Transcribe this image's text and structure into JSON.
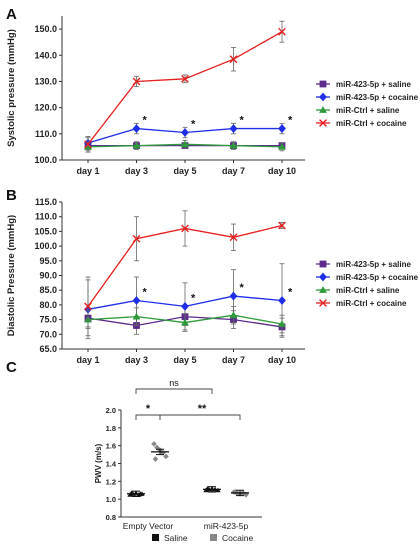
{
  "panels": [
    "A",
    "B",
    "C"
  ],
  "chart_data": [
    {
      "type": "line",
      "ylabel": "Systolic pressure (mmHg)",
      "categories": [
        "day 1",
        "day 3",
        "day 5",
        "day 7",
        "day 10"
      ],
      "ylim": [
        100,
        155
      ],
      "yticks": [
        "100.0",
        "110.0",
        "120.0",
        "130.0",
        "140.0",
        "150.0"
      ],
      "legend_position": "right",
      "series": [
        {
          "name": "miR-423-5p + saline",
          "color": "#5b2a8c",
          "marker": "square",
          "values": [
            105.5,
            105.5,
            105.5,
            105.5,
            105.5
          ],
          "err": [
            1.5,
            1,
            1,
            1,
            1
          ]
        },
        {
          "name": "miR-423-5p + cocaine",
          "color": "#1f2ee8",
          "marker": "diamond",
          "values": [
            106.5,
            112,
            110.5,
            112,
            112
          ],
          "err": [
            2,
            2,
            2,
            2,
            2
          ]
        },
        {
          "name": "miR-Ctrl + saline",
          "color": "#2e9a3a",
          "marker": "triangle",
          "values": [
            105,
            105.5,
            106,
            105.5,
            105
          ],
          "err": [
            1.5,
            1.5,
            1.5,
            1.5,
            1.5
          ]
        },
        {
          "name": "miR-Ctrl + cocaine",
          "color": "#e81f1f",
          "marker": "x",
          "values": [
            106,
            130,
            131,
            138.5,
            149
          ],
          "err": [
            3,
            2,
            1.5,
            4.5,
            4
          ]
        }
      ],
      "significance_marks": [
        "*",
        "*",
        "*",
        "*"
      ]
    },
    {
      "type": "line",
      "ylabel": "Diastolic  Pressure (mmHg)",
      "categories": [
        "day 1",
        "day 3",
        "day 5",
        "day 7",
        "day 10"
      ],
      "ylim": [
        65,
        115
      ],
      "yticks": [
        "65.0",
        "70.0",
        "75.0",
        "80.0",
        "85.0",
        "90.0",
        "95.0",
        "100.0",
        "105.0",
        "110.0",
        "115.0"
      ],
      "legend_position": "right",
      "series": [
        {
          "name": "miR-423-5p + saline",
          "color": "#5b2a8c",
          "marker": "square",
          "values": [
            75.5,
            73,
            76,
            75,
            72.5
          ],
          "err": [
            3,
            3,
            3,
            3,
            3
          ]
        },
        {
          "name": "miR-423-5p + cocaine",
          "color": "#1f2ee8",
          "marker": "diamond",
          "values": [
            78.5,
            81.5,
            79.5,
            83,
            81.5
          ],
          "err": [
            10,
            8,
            8,
            9,
            12.5
          ]
        },
        {
          "name": "miR-Ctrl + saline",
          "color": "#2e9a3a",
          "marker": "triangle",
          "values": [
            75,
            76,
            74,
            76.5,
            73.5
          ],
          "err": [
            3,
            3,
            3,
            3,
            3
          ]
        },
        {
          "name": "miR-Ctrl + cocaine",
          "color": "#e81f1f",
          "marker": "x",
          "values": [
            79.5,
            102.5,
            106,
            103,
            107
          ],
          "err": [
            10,
            7.5,
            6,
            4.5,
            1
          ]
        }
      ],
      "significance_marks": [
        "*",
        "*",
        "*",
        "*"
      ]
    },
    {
      "type": "scatter",
      "ylabel": "PWV (m/s)",
      "categories": [
        "Empty Vector",
        "miR-423-5p"
      ],
      "ylim": [
        0.8,
        2.0
      ],
      "yticks": [
        "0.8",
        "1.0",
        "1.2",
        "1.4",
        "1.6",
        "1.8",
        "2.0"
      ],
      "legend": [
        "Saline",
        "Cocaine"
      ],
      "series": [
        {
          "name": "Saline",
          "color": "#111111",
          "groups": [
            {
              "category": "Empty Vector",
              "mean": 1.06,
              "points": [
                1.05,
                1.06,
                1.07,
                1.05,
                1.06,
                1.07,
                1.06
              ]
            },
            {
              "category": "miR-423-5p",
              "mean": 1.11,
              "points": [
                1.1,
                1.11,
                1.12,
                1.11,
                1.1,
                1.12
              ]
            }
          ]
        },
        {
          "name": "Cocaine",
          "color": "#888888",
          "groups": [
            {
              "category": "Empty Vector",
              "mean": 1.53,
              "points": [
                1.62,
                1.58,
                1.55,
                1.52,
                1.48,
                1.45
              ]
            },
            {
              "category": "miR-423-5p",
              "mean": 1.07,
              "points": [
                1.08,
                1.07,
                1.06,
                1.07,
                1.05,
                1.08
              ]
            }
          ]
        }
      ],
      "comparisons": [
        {
          "label": "ns",
          "from": "Empty Vector / Saline",
          "to": "miR-423-5p / Saline"
        },
        {
          "label": "*",
          "from": "Empty Vector / Saline",
          "to": "Empty Vector / Cocaine"
        },
        {
          "label": "**",
          "from": "Empty Vector / Cocaine",
          "to": "miR-423-5p / Cocaine"
        }
      ]
    }
  ]
}
